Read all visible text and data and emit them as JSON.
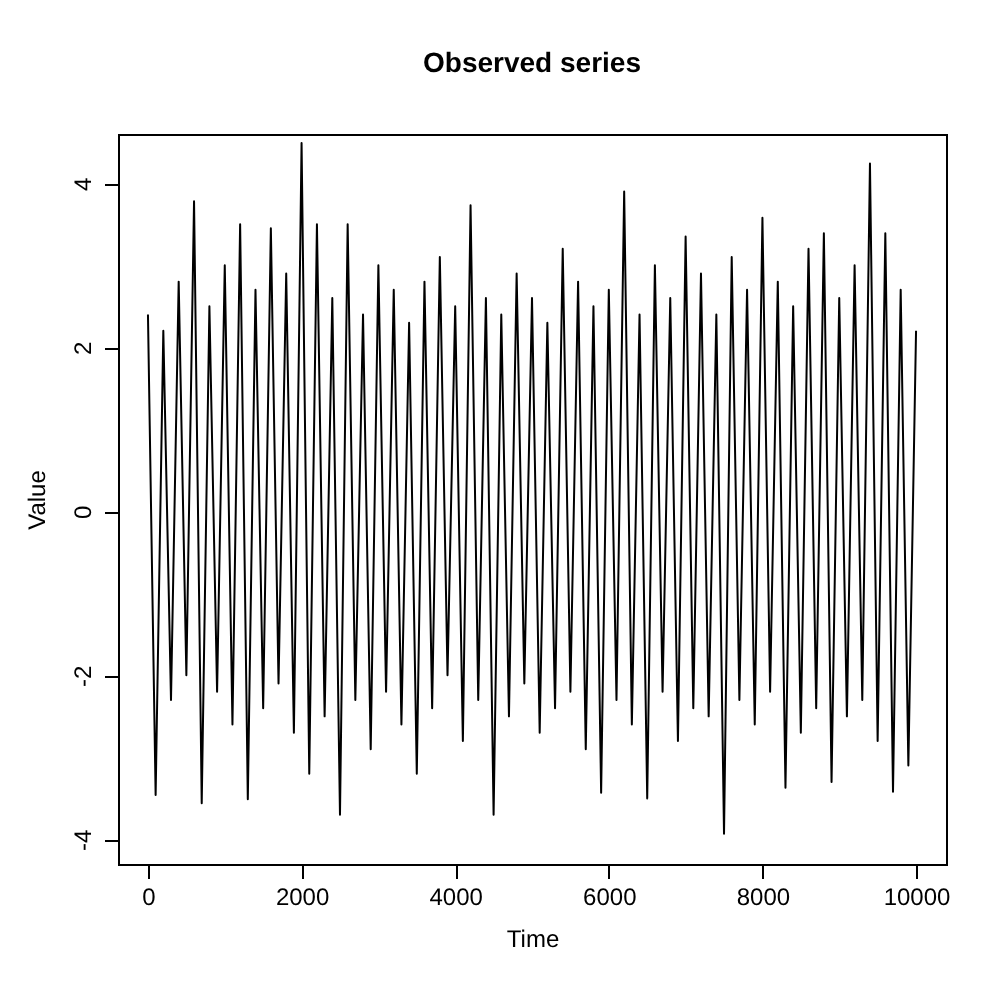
{
  "chart_data": {
    "type": "line",
    "title": "Observed series",
    "xlabel": "Time",
    "ylabel": "Value",
    "x": [
      0,
      100,
      200,
      300,
      400,
      500,
      600,
      700,
      800,
      900,
      1000,
      1100,
      1200,
      1300,
      1400,
      1500,
      1600,
      1700,
      1800,
      1900,
      2000,
      2100,
      2200,
      2300,
      2400,
      2500,
      2600,
      2700,
      2800,
      2900,
      3000,
      3100,
      3200,
      3300,
      3400,
      3500,
      3600,
      3700,
      3800,
      3900,
      4000,
      4100,
      4200,
      4300,
      4400,
      4500,
      4600,
      4700,
      4800,
      4900,
      5000,
      5100,
      5200,
      5300,
      5400,
      5500,
      5600,
      5700,
      5800,
      5900,
      6000,
      6100,
      6200,
      6300,
      6400,
      6500,
      6600,
      6700,
      6800,
      6900,
      7000,
      7100,
      7200,
      7300,
      7400,
      7500,
      7600,
      7700,
      7800,
      7900,
      8000,
      8100,
      8200,
      8300,
      8400,
      8500,
      8600,
      8700,
      8800,
      8900,
      9000,
      9100,
      9200,
      9300,
      9400,
      9500,
      9600,
      9700,
      9800,
      9900,
      10000
    ],
    "series": [
      {
        "color": "#000000",
        "values": [
          2.4,
          -3.46,
          2.2,
          -2.3,
          2.8,
          -2.0,
          3.78,
          -3.56,
          2.5,
          -2.2,
          3.0,
          -2.6,
          3.5,
          -3.51,
          2.7,
          -2.4,
          3.45,
          -2.1,
          2.9,
          -2.7,
          4.49,
          -3.2,
          3.5,
          -2.5,
          2.6,
          -3.7,
          3.5,
          -2.3,
          2.4,
          -2.9,
          3.0,
          -2.2,
          2.7,
          -2.6,
          2.3,
          -3.2,
          2.8,
          -2.4,
          3.1,
          -2.0,
          2.5,
          -2.8,
          3.73,
          -2.3,
          2.6,
          -3.7,
          2.4,
          -2.5,
          2.9,
          -2.1,
          2.6,
          -2.7,
          2.3,
          -2.4,
          3.2,
          -2.2,
          2.8,
          -2.9,
          2.5,
          -3.43,
          2.7,
          -2.3,
          3.9,
          -2.6,
          2.4,
          -3.5,
          3.0,
          -2.2,
          2.6,
          -2.8,
          3.35,
          -2.4,
          2.9,
          -2.5,
          2.4,
          -3.93,
          3.1,
          -2.3,
          2.7,
          -2.6,
          3.58,
          -2.2,
          2.8,
          -3.37,
          2.5,
          -2.7,
          3.2,
          -2.4,
          3.39,
          -3.3,
          2.6,
          -2.5,
          3.0,
          -2.3,
          4.24,
          -2.8,
          3.39,
          -3.42,
          2.7,
          -3.1,
          2.2
        ]
      }
    ],
    "xlim": [
      -390,
      10390
    ],
    "ylim": [
      -4.3,
      4.6
    ],
    "xticks": [
      0,
      2000,
      4000,
      6000,
      8000,
      10000
    ],
    "yticks": [
      -4,
      -2,
      0,
      2,
      4
    ]
  }
}
